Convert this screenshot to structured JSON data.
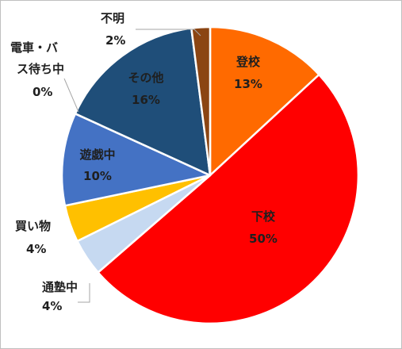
{
  "chart_data": {
    "type": "pie",
    "title": "",
    "start_angle_deg": 0,
    "direction": "clockwise",
    "slices": [
      {
        "label": "登校",
        "value": 13,
        "display": "13%",
        "color": "#ff6a00",
        "label_color": "#1f1f1f"
      },
      {
        "label": "下校",
        "value": 50,
        "display": "50%",
        "color": "#ff0000",
        "label_color": "#1f1f1f"
      },
      {
        "label": "通塾中",
        "value": 4,
        "display": "4%",
        "color": "#c6d9f1",
        "label_color": "#1f1f1f"
      },
      {
        "label": "買い物",
        "value": 4,
        "display": "4%",
        "color": "#ffc000",
        "label_color": "#1f1f1f"
      },
      {
        "label": "遊戯中",
        "value": 10,
        "display": "10%",
        "color": "#4472c4",
        "label_color": "#1f1f1f"
      },
      {
        "label": "電車・バス待ち中",
        "value": 0,
        "display": "0%",
        "color": "#2e75b6",
        "label_color": "#1f1f1f"
      },
      {
        "label": "その他",
        "value": 16,
        "display": "16%",
        "color": "#1f4e79",
        "label_color": "#1f1f1f"
      },
      {
        "label": "不明",
        "value": 2,
        "display": "2%",
        "color": "#8b4513",
        "label_color": "#1f1f1f"
      }
    ]
  }
}
